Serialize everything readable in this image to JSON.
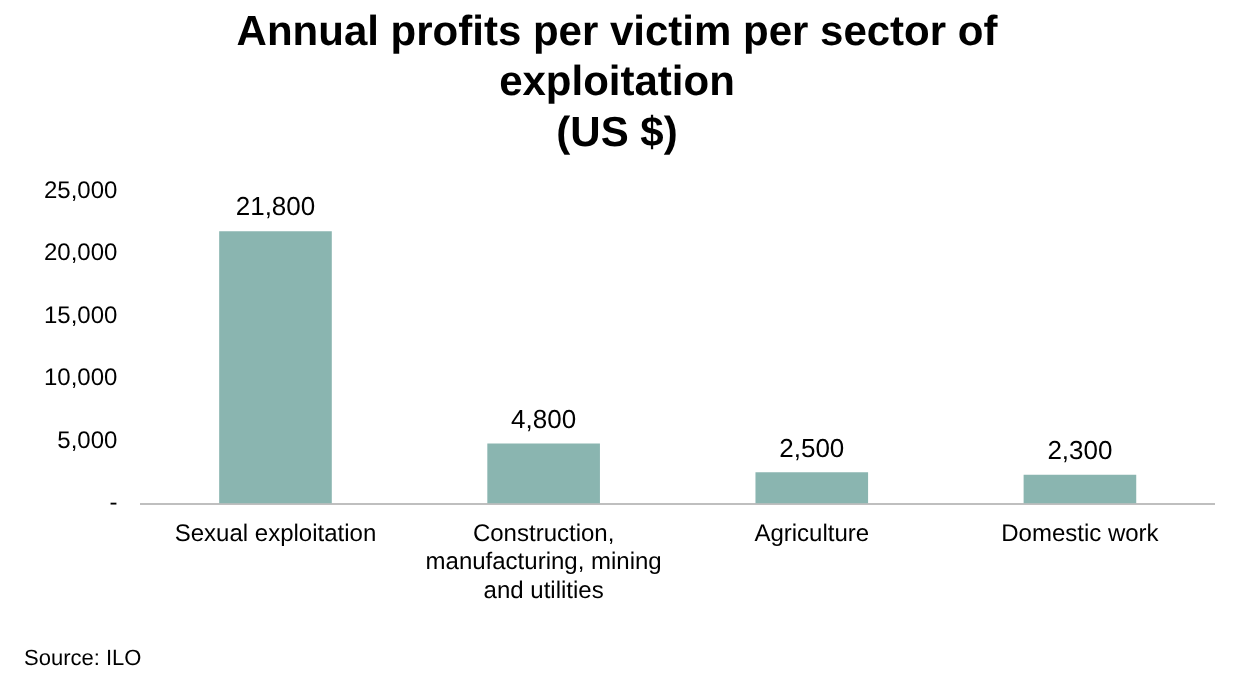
{
  "chart_data": {
    "type": "bar",
    "title": "Annual profits per victim per sector of exploitation",
    "subtitle": "(US $)",
    "categories": [
      "Sexual exploitation",
      "Construction, manufacturing, mining and utilities",
      "Agriculture",
      "Domestic work"
    ],
    "values": [
      21800,
      4800,
      2500,
      2300
    ],
    "color": "#8ab5b0",
    "ylim": [
      0,
      25000
    ],
    "yticks": [
      {
        "value": 0,
        "label": "-"
      },
      {
        "value": 5000,
        "label": "5,000"
      },
      {
        "value": 10000,
        "label": "10,000"
      },
      {
        "value": 15000,
        "label": "15,000"
      },
      {
        "value": 20000,
        "label": "20,000"
      },
      {
        "value": 25000,
        "label": "25,000"
      }
    ],
    "value_labels": [
      "21,800",
      "4,800",
      "2,500",
      "2,300"
    ],
    "grid": false,
    "legend": false,
    "annotations": [
      "Source: ILO"
    ]
  }
}
